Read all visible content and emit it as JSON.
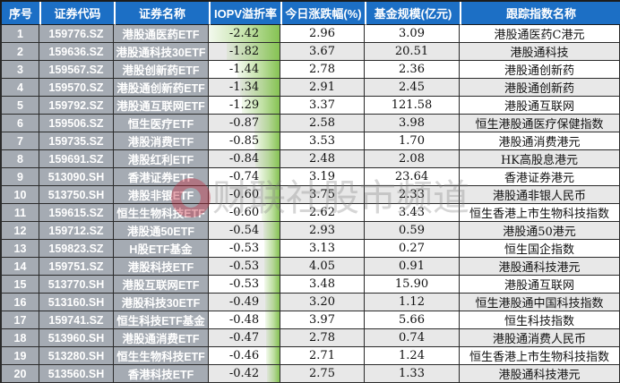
{
  "chart_data": {
    "type": "table",
    "title": "港股ETF IOPV溢折率排行",
    "columns": [
      {
        "key": "seq",
        "label": "序号"
      },
      {
        "key": "code",
        "label": "证券代码"
      },
      {
        "key": "name",
        "label": "证券名称"
      },
      {
        "key": "iopv",
        "label": "IOPV溢折率"
      },
      {
        "key": "change",
        "label": "今日涨跌幅(%)"
      },
      {
        "key": "size",
        "label": "基金规模(亿元)"
      },
      {
        "key": "index",
        "label": "跟踪指数名称"
      }
    ],
    "iopv_databar": {
      "max_abs": 2.42,
      "color": "#86c353",
      "anchor": "right"
    },
    "rows": [
      {
        "seq": "1",
        "code": "159776.SZ",
        "name": "港股通医药ETF",
        "iopv": "-2.42",
        "change": "2.96",
        "size": "3.09",
        "index": "港股通医药C港元"
      },
      {
        "seq": "2",
        "code": "159636.SZ",
        "name": "港股通科技30ETF",
        "iopv": "-1.82",
        "change": "3.67",
        "size": "20.51",
        "index": "港股通科技"
      },
      {
        "seq": "3",
        "code": "159567.SZ",
        "name": "港股创新药ETF",
        "iopv": "-1.44",
        "change": "2.78",
        "size": "2.36",
        "index": "港股通创新药"
      },
      {
        "seq": "4",
        "code": "159570.SZ",
        "name": "港股通创新药ETF",
        "iopv": "-1.34",
        "change": "2.91",
        "size": "2.45",
        "index": "港股通创新药"
      },
      {
        "seq": "5",
        "code": "159792.SZ",
        "name": "港股通互联网ETF",
        "iopv": "-1.29",
        "change": "3.37",
        "size": "121.58",
        "index": "港股通互联网"
      },
      {
        "seq": "6",
        "code": "159506.SZ",
        "name": "恒生医疗ETF",
        "iopv": "-0.87",
        "change": "2.58",
        "size": "3.98",
        "index": "恒生港股通医疗保健指数"
      },
      {
        "seq": "7",
        "code": "159735.SZ",
        "name": "港股消费ETF",
        "iopv": "-0.85",
        "change": "3.53",
        "size": "1.70",
        "index": "港股通消费港元"
      },
      {
        "seq": "8",
        "code": "159691.SZ",
        "name": "港股红利ETF",
        "iopv": "-0.84",
        "change": "2.48",
        "size": "2.08",
        "index": "HK高股息港元"
      },
      {
        "seq": "9",
        "code": "513090.SH",
        "name": "香港证券ETF",
        "iopv": "-0.74",
        "change": "3.19",
        "size": "23.64",
        "index": "香港证券港元"
      },
      {
        "seq": "10",
        "code": "513750.SH",
        "name": "港股非银ETF",
        "iopv": "-0.60",
        "change": "3.75",
        "size": "2.33",
        "index": "港股通非银人民币"
      },
      {
        "seq": "11",
        "code": "159615.SZ",
        "name": "恒生生物科技ETF",
        "iopv": "-0.60",
        "change": "2.62",
        "size": "3.43",
        "index": "恒生香港上市生物科技指数"
      },
      {
        "seq": "12",
        "code": "159712.SZ",
        "name": "港股通50ETF",
        "iopv": "-0.54",
        "change": "2.93",
        "size": "0.59",
        "index": "港股通50港元"
      },
      {
        "seq": "13",
        "code": "159823.SZ",
        "name": "H股ETF基金",
        "iopv": "-0.53",
        "change": "3.13",
        "size": "0.27",
        "index": "恒生国企指数"
      },
      {
        "seq": "14",
        "code": "159751.SZ",
        "name": "港股科技ETF",
        "iopv": "-0.53",
        "change": "4.05",
        "size": "0.91",
        "index": "港股通科技港元"
      },
      {
        "seq": "15",
        "code": "513770.SH",
        "name": "港股互联网ETF",
        "iopv": "-0.53",
        "change": "3.48",
        "size": "15.90",
        "index": "港股通互联网"
      },
      {
        "seq": "16",
        "code": "513160.SH",
        "name": "港股科技30ETF",
        "iopv": "-0.49",
        "change": "3.20",
        "size": "1.12",
        "index": "恒生港股通中国科技指数"
      },
      {
        "seq": "17",
        "code": "159741.SZ",
        "name": "恒生科技ETF基金",
        "iopv": "-0.48",
        "change": "3.97",
        "size": "5.66",
        "index": "恒生科技指数"
      },
      {
        "seq": "18",
        "code": "513960.SH",
        "name": "港股通消费ETF",
        "iopv": "-0.47",
        "change": "2.78",
        "size": "0.74",
        "index": "港股通消费人民币"
      },
      {
        "seq": "19",
        "code": "513280.SH",
        "name": "恒生生物科技ETF",
        "iopv": "-0.46",
        "change": "2.71",
        "size": "1.24",
        "index": "恒生香港上市生物科技指数"
      },
      {
        "seq": "20",
        "code": "513560.SH",
        "name": "香港科技ETF",
        "iopv": "-0.42",
        "change": "2.75",
        "size": "1.33",
        "index": "港股通科技港元"
      }
    ]
  },
  "watermark": {
    "logo": "cailian-press-logo",
    "text": "财联社股市频道",
    "logo_color": "#c0273c"
  },
  "colors": {
    "header_bg": "#1c6fc5",
    "header_text": "#ffffff",
    "label_cell_bg": "#a5abb3",
    "row_bg": "#ffffff",
    "row_alt_bg": "#e8e8e8",
    "border": "#2a2a2a",
    "databar_green": "#86c353"
  }
}
